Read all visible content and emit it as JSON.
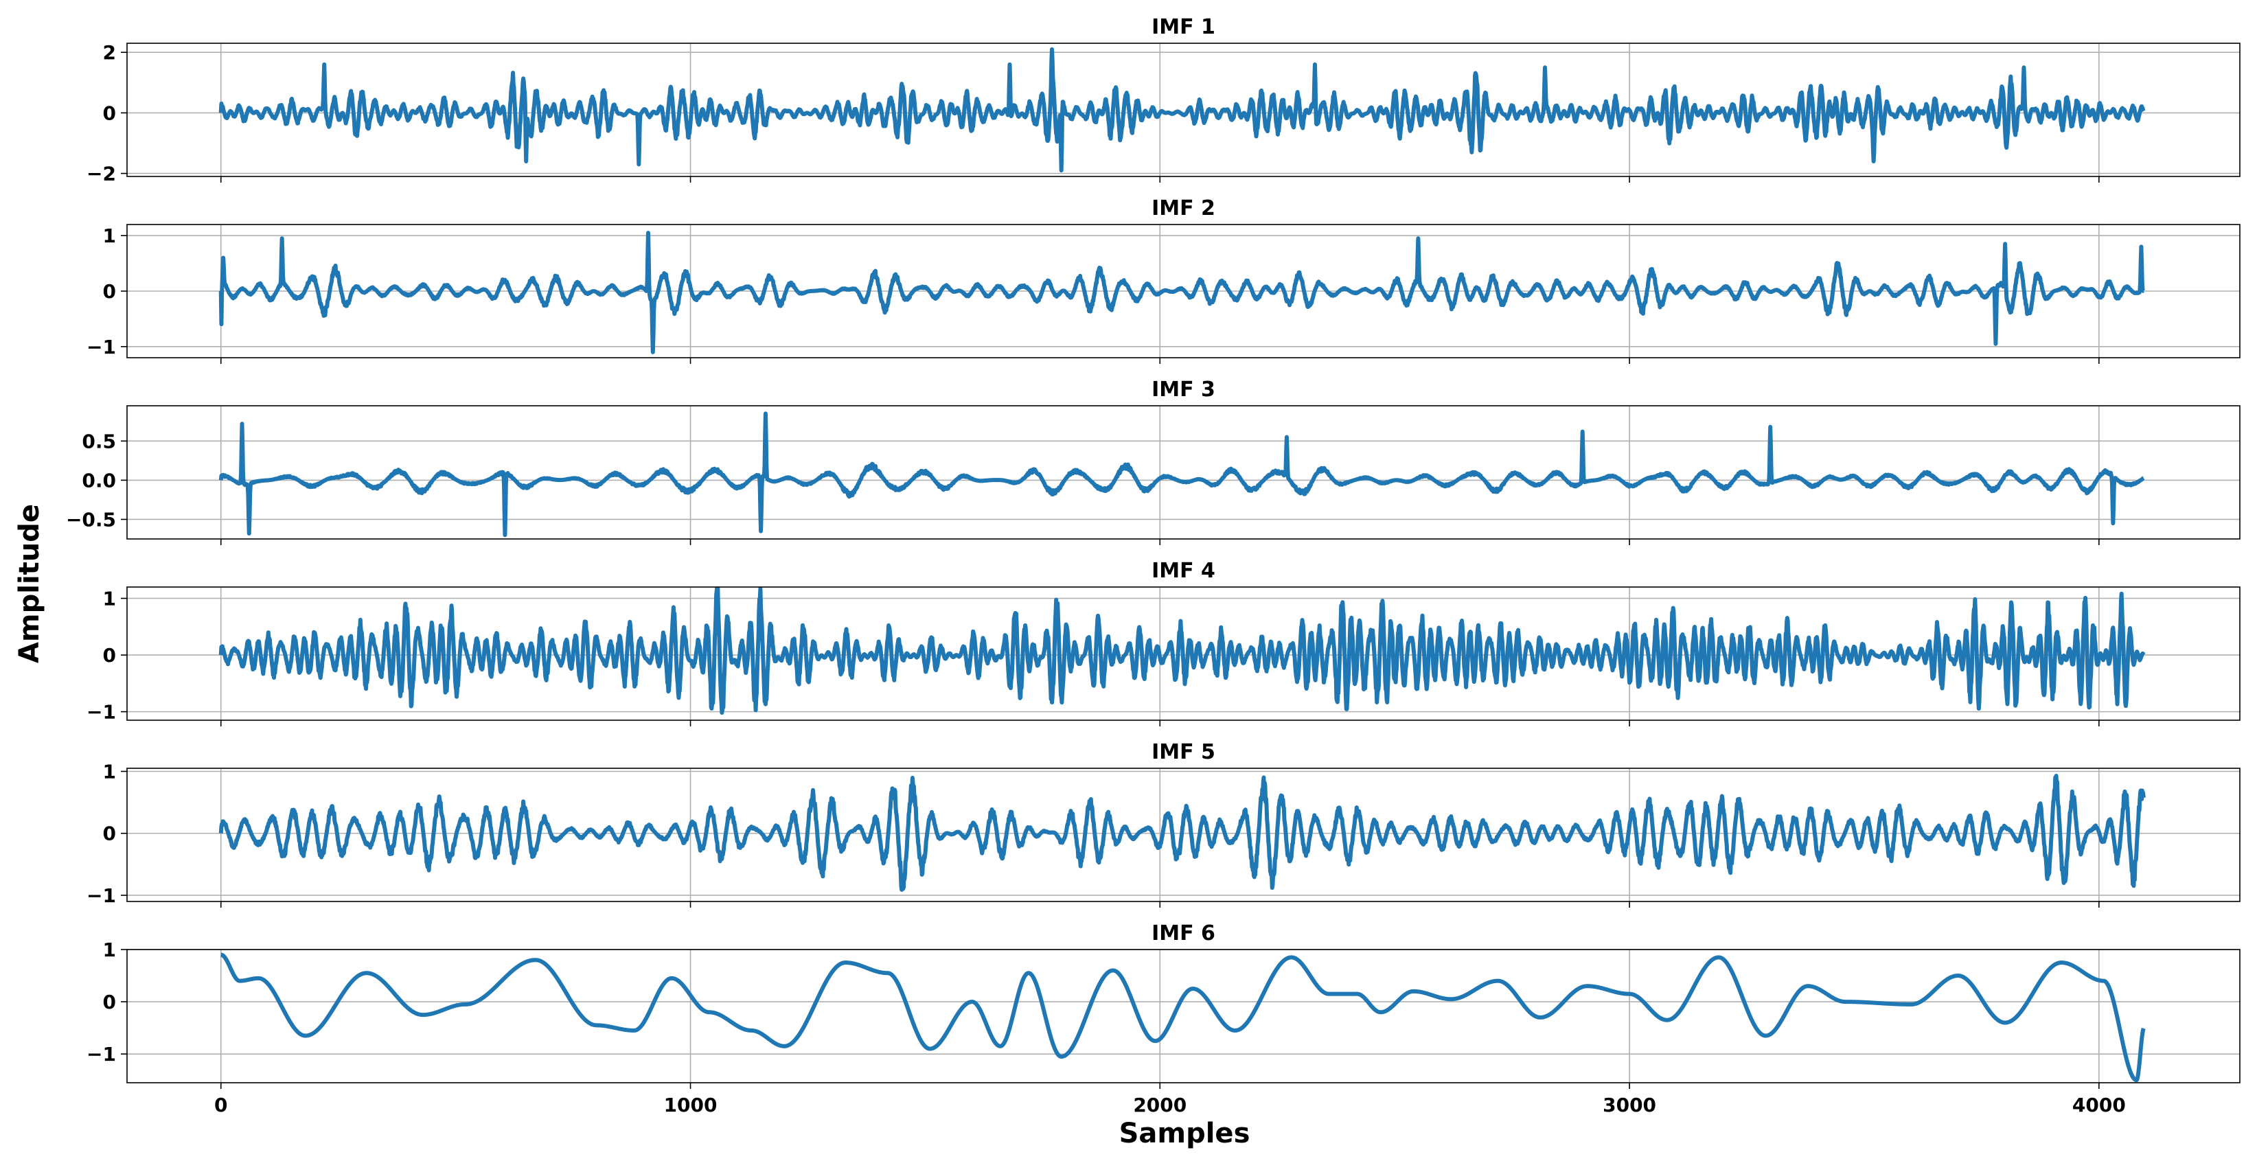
{
  "figure": {
    "xlabel": "Samples",
    "ylabel": "Amplitude",
    "line_color": "#1f77b4",
    "grid": true,
    "x_ticks": [
      0,
      1000,
      2000,
      3000,
      4000
    ],
    "x_tick_labels": [
      "0",
      "1000",
      "2000",
      "3000",
      "4000"
    ],
    "xlim": [
      -200,
      4300
    ]
  },
  "chart_data": [
    {
      "type": "line",
      "title": "IMF 1",
      "ylim": [
        -2.1,
        2.3
      ],
      "yticks": [
        -2,
        0,
        2
      ],
      "ytick_labels": [
        "−2",
        "0",
        "2"
      ],
      "n_samples": 4096,
      "amplitude": 0.8,
      "components": [
        [
          0.0105,
          0.6,
          0.3
        ],
        [
          0.0123,
          0.45,
          1.7
        ],
        [
          0.0141,
          0.4,
          2.9
        ],
        [
          0.0168,
          0.3,
          0.9
        ]
      ],
      "spikes": [
        [
          1770,
          2.1
        ],
        [
          1790,
          -1.9
        ],
        [
          890,
          -1.7
        ],
        [
          1680,
          1.6
        ],
        [
          2330,
          1.6
        ],
        [
          3840,
          1.5
        ],
        [
          3520,
          -1.6
        ],
        [
          2820,
          1.5
        ],
        [
          650,
          -1.6
        ],
        [
          220,
          1.6
        ]
      ],
      "ends": [
        0,
        0
      ]
    },
    {
      "type": "line",
      "title": "IMF 2",
      "ylim": [
        -1.2,
        1.2
      ],
      "yticks": [
        -1,
        0,
        1
      ],
      "ytick_labels": [
        "−1",
        "0",
        "1"
      ],
      "n_samples": 4096,
      "amplitude": 0.35,
      "components": [
        [
          0.0052,
          0.6,
          0.4
        ],
        [
          0.0064,
          0.45,
          2.1
        ],
        [
          0.0077,
          0.35,
          1.2
        ]
      ],
      "spikes": [
        [
          920,
          -1.1
        ],
        [
          910,
          1.05
        ],
        [
          0,
          -0.95
        ],
        [
          5,
          0.6
        ],
        [
          130,
          0.95
        ],
        [
          3800,
          0.85
        ],
        [
          3780,
          -0.95
        ],
        [
          4090,
          0.8
        ],
        [
          2550,
          0.95
        ]
      ],
      "ends": [
        0,
        0
      ]
    },
    {
      "type": "line",
      "title": "IMF 3",
      "ylim": [
        -0.75,
        0.95
      ],
      "yticks": [
        -0.5,
        0.0,
        0.5
      ],
      "ytick_labels": [
        "−0.5",
        "0.0",
        "0.5"
      ],
      "n_samples": 4096,
      "amplitude": 0.22,
      "components": [
        [
          0.0026,
          0.6,
          0.8
        ],
        [
          0.0032,
          0.45,
          1.9
        ],
        [
          0.0039,
          0.3,
          2.6
        ]
      ],
      "spikes": [
        [
          1160,
          0.85
        ],
        [
          1150,
          -0.65
        ],
        [
          605,
          -0.7
        ],
        [
          45,
          0.72
        ],
        [
          60,
          -0.68
        ],
        [
          3300,
          0.68
        ],
        [
          2900,
          0.62
        ],
        [
          4030,
          -0.55
        ],
        [
          2270,
          0.55
        ]
      ],
      "ends": [
        0,
        0
      ]
    },
    {
      "type": "line",
      "title": "IMF 4",
      "ylim": [
        -1.15,
        1.2
      ],
      "yticks": [
        -1,
        0,
        1
      ],
      "ytick_labels": [
        "−1",
        "0",
        "1"
      ],
      "n_samples": 4096,
      "amplitude": 0.75,
      "components": [
        [
          0.0126,
          0.7,
          0.3
        ],
        [
          0.0157,
          0.5,
          1.4
        ],
        [
          0.0094,
          0.35,
          2.2
        ]
      ],
      "envelope_period": 700,
      "ends": [
        0,
        0
      ]
    },
    {
      "type": "line",
      "title": "IMF 5",
      "ylim": [
        -1.1,
        1.05
      ],
      "yticks": [
        -1,
        0,
        1
      ],
      "ytick_labels": [
        "−1",
        "0",
        "1"
      ],
      "n_samples": 4096,
      "amplitude": 0.55,
      "components": [
        [
          0.0067,
          0.8,
          0.2
        ],
        [
          0.0081,
          0.5,
          1.1
        ],
        [
          0.0052,
          0.35,
          2.7
        ]
      ],
      "envelope_period": 900,
      "ends": [
        0,
        0
      ]
    },
    {
      "type": "line",
      "title": "IMF 6",
      "ylim": [
        -1.55,
        1.0
      ],
      "yticks": [
        -1,
        0,
        1
      ],
      "ytick_labels": [
        "−1",
        "0",
        "1"
      ],
      "n_samples": 4096,
      "keypoints": [
        [
          0,
          0.9
        ],
        [
          40,
          0.4
        ],
        [
          80,
          0.45
        ],
        [
          180,
          -0.65
        ],
        [
          310,
          0.55
        ],
        [
          430,
          -0.25
        ],
        [
          520,
          -0.05
        ],
        [
          670,
          0.8
        ],
        [
          800,
          -0.45
        ],
        [
          880,
          -0.55
        ],
        [
          960,
          0.45
        ],
        [
          1040,
          -0.2
        ],
        [
          1130,
          -0.55
        ],
        [
          1200,
          -0.85
        ],
        [
          1330,
          0.75
        ],
        [
          1420,
          0.55
        ],
        [
          1510,
          -0.9
        ],
        [
          1600,
          0.0
        ],
        [
          1660,
          -0.85
        ],
        [
          1720,
          0.55
        ],
        [
          1790,
          -1.05
        ],
        [
          1900,
          0.6
        ],
        [
          1990,
          -0.75
        ],
        [
          2070,
          0.25
        ],
        [
          2160,
          -0.55
        ],
        [
          2280,
          0.85
        ],
        [
          2360,
          0.15
        ],
        [
          2420,
          0.15
        ],
        [
          2470,
          -0.2
        ],
        [
          2540,
          0.2
        ],
        [
          2620,
          0.05
        ],
        [
          2720,
          0.4
        ],
        [
          2810,
          -0.3
        ],
        [
          2910,
          0.3
        ],
        [
          3000,
          0.15
        ],
        [
          3080,
          -0.35
        ],
        [
          3190,
          0.85
        ],
        [
          3290,
          -0.65
        ],
        [
          3380,
          0.3
        ],
        [
          3460,
          0.0
        ],
        [
          3600,
          -0.05
        ],
        [
          3700,
          0.5
        ],
        [
          3800,
          -0.4
        ],
        [
          3920,
          0.75
        ],
        [
          4010,
          0.4
        ],
        [
          4080,
          -1.5
        ],
        [
          4096,
          -0.5
        ]
      ]
    }
  ]
}
